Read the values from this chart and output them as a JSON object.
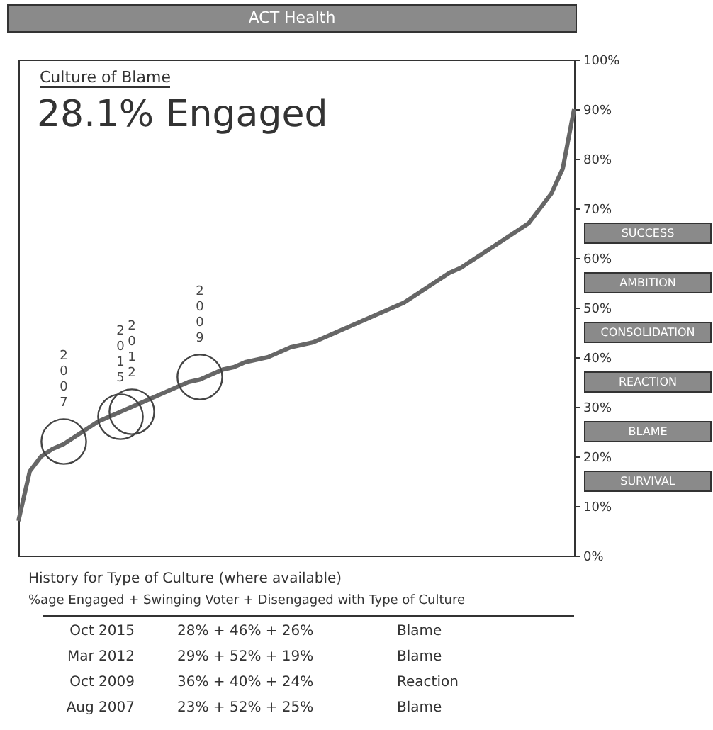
{
  "chart_data": {
    "type": "line",
    "title": "ACT Health",
    "subtitle": "Culture of Blame",
    "categories": [
      null,
      null,
      null,
      null,
      null,
      null,
      null,
      null,
      null,
      null,
      null,
      null,
      null,
      null,
      null,
      null,
      null,
      null,
      null,
      null,
      null,
      null,
      null,
      null,
      null,
      null,
      null,
      null,
      null,
      null,
      null,
      null,
      null,
      null,
      null,
      null,
      null,
      null,
      null,
      null,
      null,
      null,
      null,
      null,
      null,
      null,
      null,
      null,
      null,
      null
    ],
    "series": [
      {
        "color": "#666666",
        "values": [
          7,
          17,
          20,
          21.5,
          22.5,
          24,
          25.5,
          27,
          28,
          29,
          30,
          31,
          32,
          33,
          34,
          35,
          35.5,
          36.5,
          37.5,
          38,
          39,
          39.5,
          40,
          41,
          42,
          42.5,
          43,
          44,
          45,
          46,
          47,
          48,
          49,
          50,
          51,
          52.5,
          54,
          55.5,
          57,
          58,
          59.5,
          61,
          62.5,
          64,
          65.5,
          67,
          70,
          73,
          78,
          90
        ]
      },
      {
        "name": "2007",
        "type": "scatter",
        "marker": "circle",
        "color": "#444444",
        "values": [
          null,
          null,
          null,
          null,
          23,
          null,
          null,
          null,
          null,
          null,
          null,
          null,
          null,
          null,
          null,
          null,
          null,
          null,
          null,
          null,
          null,
          null,
          null,
          null,
          null,
          null,
          null,
          null,
          null,
          null,
          null,
          null,
          null,
          null,
          null,
          null,
          null,
          null,
          null,
          null,
          null,
          null,
          null,
          null,
          null,
          null,
          null,
          null,
          null,
          null
        ]
      },
      {
        "name": "2015",
        "type": "scatter",
        "marker": "circle",
        "color": "#444444",
        "values": [
          null,
          null,
          null,
          null,
          null,
          null,
          null,
          null,
          null,
          28,
          null,
          null,
          null,
          null,
          null,
          null,
          null,
          null,
          null,
          null,
          null,
          null,
          null,
          null,
          null,
          null,
          null,
          null,
          null,
          null,
          null,
          null,
          null,
          null,
          null,
          null,
          null,
          null,
          null,
          null,
          null,
          null,
          null,
          null,
          null,
          null,
          null,
          null,
          null,
          null
        ]
      },
      {
        "name": "2012",
        "type": "scatter",
        "marker": "circle",
        "color": "#444444",
        "values": [
          null,
          null,
          null,
          null,
          null,
          null,
          null,
          null,
          null,
          null,
          29,
          null,
          null,
          null,
          null,
          null,
          null,
          null,
          null,
          null,
          null,
          null,
          null,
          null,
          null,
          null,
          null,
          null,
          null,
          null,
          null,
          null,
          null,
          null,
          null,
          null,
          null,
          null,
          null,
          null,
          null,
          null,
          null,
          null,
          null,
          null,
          null,
          null,
          null,
          null
        ]
      },
      {
        "name": "2009",
        "type": "scatter",
        "marker": "circle",
        "color": "#444444",
        "values": [
          null,
          null,
          null,
          null,
          null,
          null,
          null,
          null,
          null,
          null,
          null,
          null,
          null,
          null,
          null,
          null,
          36,
          null,
          null,
          null,
          null,
          null,
          null,
          null,
          null,
          null,
          null,
          null,
          null,
          null,
          null,
          null,
          null,
          null,
          null,
          null,
          null,
          null,
          null,
          null,
          null,
          null,
          null,
          null,
          null,
          null,
          null,
          null,
          null,
          null
        ]
      }
    ],
    "ylim": [
      0,
      100
    ],
    "yticks": [
      {
        "value": 0,
        "label": "0%"
      },
      {
        "value": 10,
        "label": "10%"
      },
      {
        "value": 20,
        "label": "20%"
      },
      {
        "value": 30,
        "label": "30%"
      },
      {
        "value": 40,
        "label": "40%"
      },
      {
        "value": 50,
        "label": "50%"
      },
      {
        "value": 60,
        "label": "60%"
      },
      {
        "value": 70,
        "label": "70%"
      },
      {
        "value": 80,
        "label": "80%"
      },
      {
        "value": 90,
        "label": "90%"
      },
      {
        "value": 100,
        "label": "100%"
      }
    ],
    "tick_labels": "y",
    "grid": false,
    "annotations": [
      "28.1% Engaged",
      "History for Type of Culture (where available)",
      "%age Engaged + Swinging Voter + Disengaged with Type of Culture",
      "Oct 2015",
      "28% + 46% + 26%",
      "Blame",
      "Mar 2012",
      "29% + 52% + 19%",
      "Blame",
      "Oct 2009",
      "36% + 40% + 24%",
      "Reaction",
      "Aug 2007",
      "23% + 52% + 25%",
      "Blame",
      "SUCCESS",
      "AMBITION",
      "CONSOLIDATION",
      "REACTION",
      "BLAME",
      "SURVIVAL"
    ]
  }
}
